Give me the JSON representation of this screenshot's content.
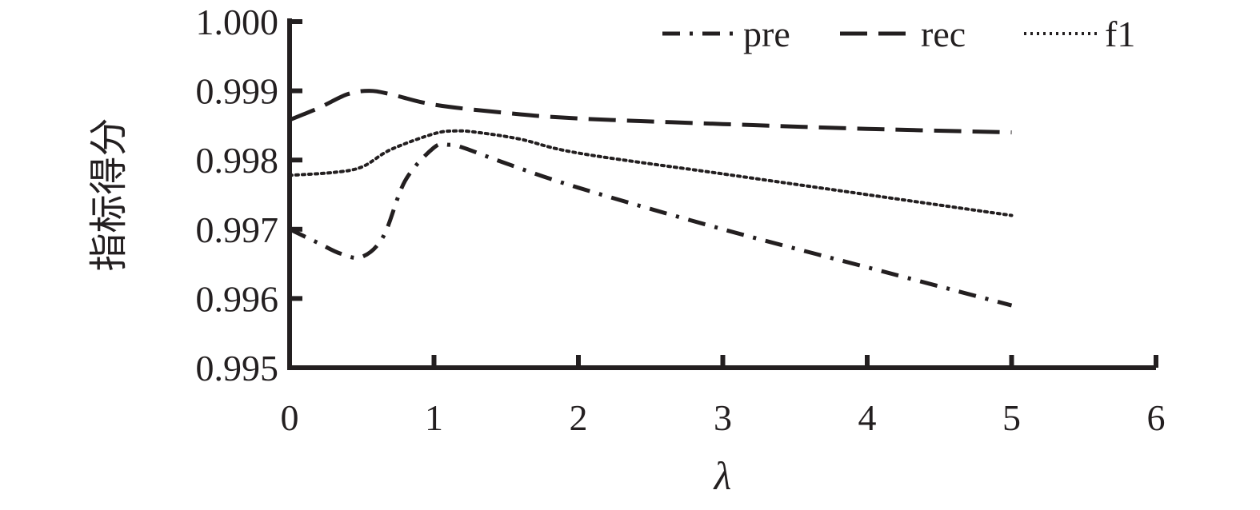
{
  "chart_data": {
    "type": "line",
    "xlabel": "λ",
    "ylabel": "指标得分",
    "xlim": [
      0,
      6
    ],
    "ylim": [
      0.995,
      1.0
    ],
    "xticks": [
      "0",
      "1",
      "2",
      "3",
      "4",
      "5",
      "6"
    ],
    "yticks": [
      "0.995",
      "0.996",
      "0.997",
      "0.998",
      "0.999",
      "1.000"
    ],
    "grid": false,
    "legend_position": "top",
    "series": [
      {
        "name": "pre",
        "style": "dash-dot",
        "color": "#231f20",
        "points": [
          [
            0,
            0.997
          ],
          [
            0.2,
            0.9968
          ],
          [
            0.35,
            0.99665
          ],
          [
            0.5,
            0.9966
          ],
          [
            0.65,
            0.9969
          ],
          [
            0.8,
            0.9977
          ],
          [
            1.0,
            0.99818
          ],
          [
            1.1,
            0.99822
          ],
          [
            1.2,
            0.99818
          ],
          [
            1.5,
            0.99795
          ],
          [
            2,
            0.9976
          ],
          [
            3,
            0.997
          ],
          [
            4,
            0.99645
          ],
          [
            5,
            0.9959
          ]
        ]
      },
      {
        "name": "rec",
        "style": "long-dash",
        "color": "#231f20",
        "points": [
          [
            0,
            0.99858
          ],
          [
            0.2,
            0.99875
          ],
          [
            0.4,
            0.99895
          ],
          [
            0.55,
            0.999
          ],
          [
            0.7,
            0.99895
          ],
          [
            1,
            0.9988
          ],
          [
            1.5,
            0.99868
          ],
          [
            2,
            0.9986
          ],
          [
            3,
            0.99852
          ],
          [
            4,
            0.99845
          ],
          [
            5,
            0.9984
          ]
        ]
      },
      {
        "name": "f1",
        "style": "dotted",
        "color": "#231f20",
        "points": [
          [
            0,
            0.99778
          ],
          [
            0.3,
            0.99782
          ],
          [
            0.5,
            0.9979
          ],
          [
            0.7,
            0.99815
          ],
          [
            1.0,
            0.99838
          ],
          [
            1.15,
            0.99842
          ],
          [
            1.3,
            0.9984
          ],
          [
            1.6,
            0.9983
          ],
          [
            2,
            0.9981
          ],
          [
            3,
            0.9978
          ],
          [
            4,
            0.9975
          ],
          [
            5,
            0.9972
          ]
        ]
      }
    ]
  }
}
